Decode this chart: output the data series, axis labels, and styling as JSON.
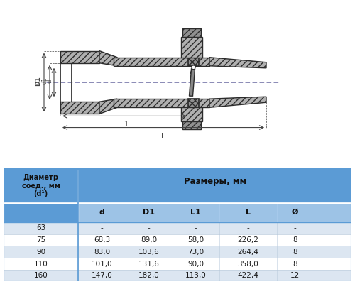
{
  "background_color": "#ffffff",
  "table_header_color": "#5b9bd5",
  "table_subheader_color": "#9dc3e6",
  "table_row_odd": "#dce6f1",
  "table_row_even": "#ffffff",
  "col_headers": [
    "Диаметр\nсоед., мм\n(d¹)",
    "d",
    "D1",
    "L1",
    "L",
    "Ø"
  ],
  "size_header": "Размеры, мм",
  "rows": [
    [
      "63",
      "-",
      "-",
      "-",
      "-",
      "-"
    ],
    [
      "75",
      "68,3",
      "89,0",
      "58,0",
      "226,2",
      "8"
    ],
    [
      "90",
      "83,0",
      "103,6",
      "73,0",
      "264,4",
      "8"
    ],
    [
      "110",
      "101,0",
      "131,6",
      "90,0",
      "358,0",
      "8"
    ],
    [
      "160",
      "147,0",
      "182,0",
      "113,0",
      "422,4",
      "12"
    ]
  ],
  "line_color": "#2c2c2c",
  "hatch_color": "#555555",
  "dim_color": "#444444"
}
